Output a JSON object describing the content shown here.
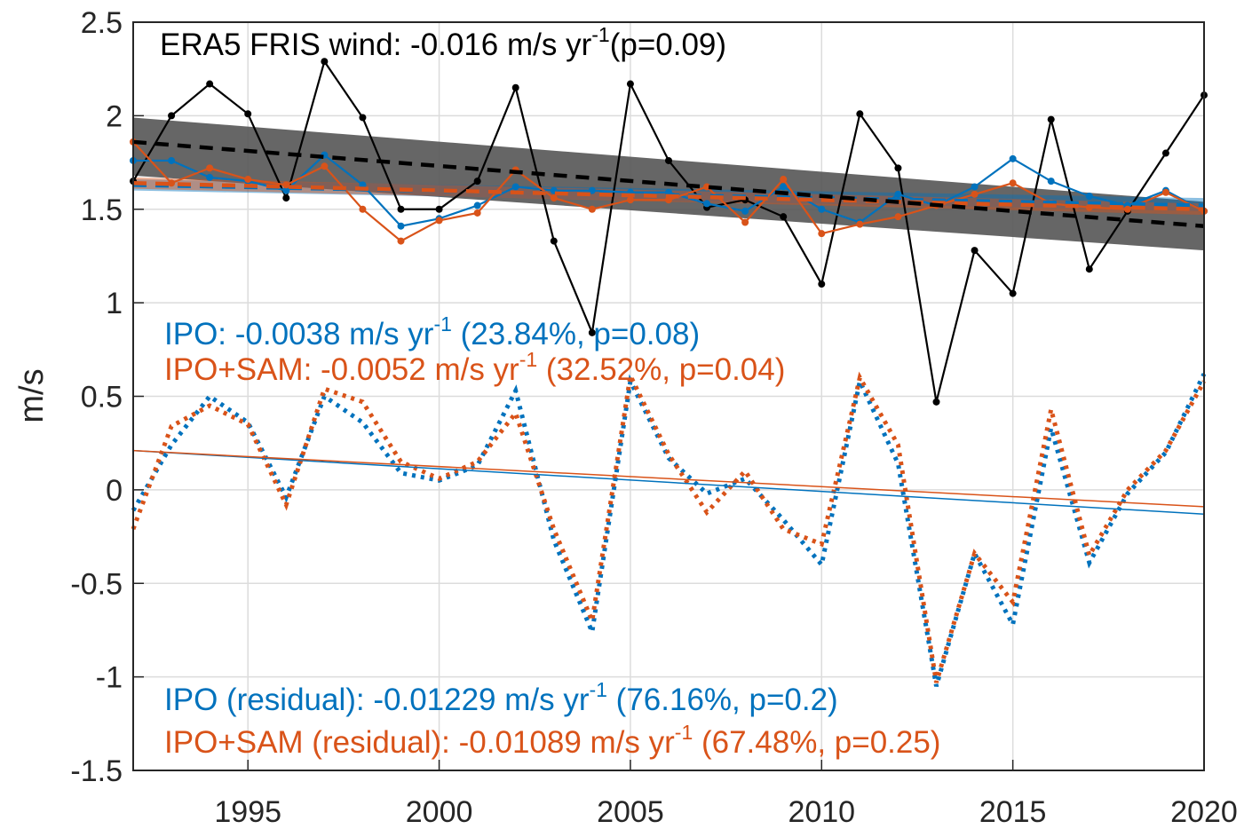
{
  "chart_data": {
    "type": "line",
    "ylabel": "m/s",
    "x": [
      1992,
      1993,
      1994,
      1995,
      1996,
      1997,
      1998,
      1999,
      2000,
      2001,
      2002,
      2003,
      2004,
      2005,
      2006,
      2007,
      2008,
      2009,
      2010,
      2011,
      2012,
      2013,
      2014,
      2015,
      2016,
      2017,
      2018,
      2019,
      2020
    ],
    "xlim": [
      1992,
      2020
    ],
    "xticks": [
      1995,
      2000,
      2005,
      2010,
      2015,
      2020
    ],
    "ylim": [
      -1.5,
      2.5
    ],
    "yticks": [
      2.5,
      2,
      1.5,
      1,
      0.5,
      0,
      -0.5,
      -1,
      -1.5
    ],
    "grid": true,
    "bands": [
      {
        "color": "#555555",
        "x": [
          1992,
          2020
        ],
        "lower": [
          1.68,
          1.28
        ],
        "upper": [
          1.99,
          1.54
        ]
      },
      {
        "color": "#0072BD",
        "x": [
          1992,
          2020
        ],
        "lower": [
          1.6,
          1.49
        ],
        "upper": [
          1.66,
          1.56
        ]
      },
      {
        "color": "#D95319",
        "x": [
          1992,
          2020
        ],
        "lower": [
          1.61,
          1.47
        ],
        "upper": [
          1.67,
          1.53
        ]
      }
    ],
    "series": [
      {
        "color": "#0072BD",
        "style": "dotted",
        "values": [
          -0.11,
          0.24,
          0.5,
          0.36,
          -0.04,
          0.5,
          0.36,
          0.09,
          0.05,
          0.13,
          0.53,
          -0.27,
          -0.76,
          0.58,
          0.17,
          -0.02,
          0.06,
          -0.16,
          -0.4,
          0.58,
          0.14,
          -1.05,
          -0.34,
          -0.72,
          0.33,
          -0.39,
          -0.02,
          0.2,
          0.62
        ]
      },
      {
        "color": "#D95319",
        "style": "dotted",
        "values": [
          -0.21,
          0.34,
          0.45,
          0.35,
          -0.08,
          0.54,
          0.47,
          0.15,
          0.06,
          0.15,
          0.41,
          -0.21,
          -0.7,
          0.61,
          0.19,
          -0.12,
          0.1,
          -0.21,
          -0.29,
          0.6,
          0.24,
          -1.03,
          -0.34,
          -0.6,
          0.43,
          -0.35,
          0.0,
          0.21,
          0.58
        ]
      },
      {
        "color": "#0072BD",
        "style": "thin",
        "x": [
          1992,
          2020
        ],
        "values": [
          0.21,
          -0.13
        ]
      },
      {
        "color": "#D95319",
        "style": "thin",
        "x": [
          1992,
          2020
        ],
        "values": [
          0.21,
          -0.09
        ]
      },
      {
        "color": "#000000",
        "style": "markers",
        "values": [
          1.65,
          2.0,
          2.17,
          2.01,
          1.56,
          2.29,
          1.99,
          1.5,
          1.5,
          1.65,
          2.15,
          1.33,
          0.84,
          2.17,
          1.76,
          1.51,
          1.55,
          1.46,
          1.1,
          2.01,
          1.72,
          0.47,
          1.28,
          1.05,
          1.98,
          1.18,
          1.49,
          1.8,
          2.11
        ]
      },
      {
        "color": "#0072BD",
        "style": "markers",
        "values": [
          1.76,
          1.76,
          1.67,
          1.65,
          1.6,
          1.79,
          1.63,
          1.41,
          1.45,
          1.52,
          1.62,
          1.6,
          1.6,
          1.59,
          1.59,
          1.53,
          1.49,
          1.62,
          1.5,
          1.43,
          1.58,
          1.52,
          1.62,
          1.77,
          1.65,
          1.57,
          1.52,
          1.6,
          1.49
        ]
      },
      {
        "color": "#D95319",
        "style": "markers",
        "values": [
          1.86,
          1.64,
          1.72,
          1.66,
          1.63,
          1.73,
          1.5,
          1.33,
          1.44,
          1.48,
          1.71,
          1.56,
          1.5,
          1.55,
          1.55,
          1.62,
          1.43,
          1.66,
          1.37,
          1.42,
          1.46,
          1.52,
          1.58,
          1.64,
          1.53,
          1.51,
          1.5,
          1.59,
          1.49
        ]
      },
      {
        "color": "#0072BD",
        "style": "dashed",
        "x": [
          1992,
          2020
        ],
        "values": [
          1.63,
          1.52
        ]
      },
      {
        "color": "#D95319",
        "style": "dashed",
        "x": [
          1992,
          2020
        ],
        "values": [
          1.64,
          1.5
        ]
      },
      {
        "color": "#000000",
        "style": "dashed",
        "x": [
          1992,
          2020
        ],
        "values": [
          1.86,
          1.41
        ]
      }
    ],
    "annotations": [
      {
        "color": "#000000",
        "text": "ERA5 FRIS wind: -0.016 m/s yr",
        "sup": "-1",
        "after": "(p=0.09)"
      },
      {
        "color": "#0072BD",
        "text": "IPO: -0.0038 m/s yr",
        "sup": "-1",
        "after": " (23.84%, p=0.08)"
      },
      {
        "color": "#D95319",
        "text": "IPO+SAM: -0.0052 m/s yr",
        "sup": "-1",
        "after": " (32.52%, p=0.04)"
      },
      {
        "color": "#0072BD",
        "text": "IPO (residual): -0.01229 m/s yr",
        "sup": "-1",
        "after": " (76.16%, p=0.2)"
      },
      {
        "color": "#D95319",
        "text": "IPO+SAM (residual): -0.01089 m/s yr",
        "sup": "-1",
        "after": " (67.48%, p=0.25)"
      }
    ]
  }
}
